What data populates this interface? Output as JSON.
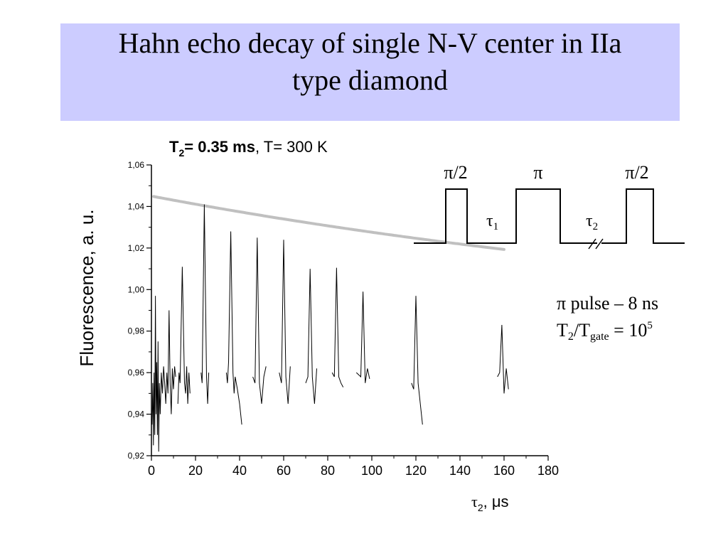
{
  "slide": {
    "title_line1": "Hahn echo decay of single N-V center in IIa",
    "title_line2": "type diamond"
  },
  "annotations": {
    "t2_symbol": "T",
    "t2_sub": "2",
    "t2_value": "= 0.35 ms",
    "temp": ", T= 300 K",
    "pulse_labels": [
      "π/2",
      "π",
      "π/2"
    ],
    "tau1_symbol": "τ",
    "tau1_sub": "1",
    "tau2_symbol": "τ",
    "tau2_sub": "2",
    "pulse_duration": "π pulse – 8 ns",
    "ratio_t": "T",
    "ratio_t_sub": "2",
    "ratio_mid": "/T",
    "ratio_gate_sub": "gate",
    "ratio_eq": " = 10",
    "ratio_exp": "5"
  },
  "chart_data": {
    "type": "line",
    "xlabel_symbol": "τ",
    "xlabel_sub": "2",
    "xlabel_unit": ", μs",
    "ylabel": "Fluorescence, a. u.",
    "xlim": [
      0,
      180
    ],
    "ylim": [
      0.92,
      1.06
    ],
    "xticks": [
      0,
      20,
      40,
      60,
      80,
      100,
      120,
      140,
      160,
      180
    ],
    "xtick_labels": [
      "0",
      "20",
      "40",
      "60",
      "80",
      "100",
      "120",
      "140",
      "160",
      "180"
    ],
    "yticks": [
      0.92,
      0.94,
      0.96,
      0.98,
      1.0,
      1.02,
      1.04,
      1.06
    ],
    "ytick_labels": [
      "0,92",
      "0,94",
      "0,96",
      "0,98",
      "1,00",
      "1,02",
      "1,04",
      "1,06"
    ],
    "colors": {
      "data": "#000000",
      "fit": "#c0c0c0",
      "axis": "#000000"
    },
    "series": [
      {
        "segments": [
          [
            [
              0.3,
              0.935
            ],
            [
              0.6,
              0.955
            ],
            [
              0.9,
              0.925
            ],
            [
              1.2,
              0.96
            ],
            [
              1.5,
              0.93
            ],
            [
              1.8,
              0.997
            ],
            [
              2.1,
              0.94
            ],
            [
              2.4,
              0.965
            ],
            [
              2.7,
              0.93
            ],
            [
              3.0,
              0.975
            ],
            [
              3.3,
              0.922
            ],
            [
              3.6,
              0.955
            ],
            [
              4.0,
              0.94
            ],
            [
              4.5,
              0.96
            ],
            [
              5.0,
              0.95
            ],
            [
              5.5,
              0.963
            ],
            [
              6.0,
              0.955
            ],
            [
              6.5,
              0.945
            ],
            [
              7.0,
              0.96
            ],
            [
              7.5,
              0.95
            ],
            [
              8.0,
              0.99
            ],
            [
              8.5,
              0.955
            ],
            [
              9.0,
              0.94
            ],
            [
              9.5,
              0.962
            ],
            [
              10.0,
              0.952
            ],
            [
              10.5,
              0.963
            ],
            [
              11.0,
              0.958
            ]
          ],
          [
            [
              12.0,
              0.945
            ],
            [
              12.5,
              0.96
            ],
            [
              13.0,
              0.955
            ],
            [
              14.0,
              1.011
            ],
            [
              15.0,
              0.955
            ],
            [
              15.5,
              0.95
            ],
            [
              16.0,
              0.963
            ],
            [
              16.5,
              0.945
            ],
            [
              17.0,
              0.96
            ],
            [
              17.5,
              0.95
            ]
          ],
          [
            [
              22.5,
              0.96
            ],
            [
              23.0,
              0.955
            ],
            [
              24.0,
              1.041
            ],
            [
              25.0,
              0.958
            ],
            [
              25.5,
              0.945
            ],
            [
              26.0,
              0.96
            ]
          ],
          [
            [
              34.0,
              0.96
            ],
            [
              34.5,
              0.955
            ],
            [
              35.0,
              0.965
            ],
            [
              36.0,
              1.028
            ],
            [
              37.0,
              0.96
            ],
            [
              37.5,
              0.95
            ],
            [
              38.0,
              0.958
            ],
            [
              39.0,
              0.952
            ],
            [
              40.0,
              0.945
            ],
            [
              41.0,
              0.935
            ]
          ],
          [
            [
              46.0,
              0.958
            ],
            [
              47.0,
              0.955
            ],
            [
              48.0,
              1.025
            ],
            [
              49.0,
              0.955
            ],
            [
              50.0,
              0.945
            ],
            [
              51.0,
              0.958
            ],
            [
              52.0,
              0.963
            ]
          ],
          [
            [
              58.0,
              0.96
            ],
            [
              59.0,
              0.955
            ],
            [
              60.0,
              1.024
            ],
            [
              61.0,
              0.958
            ],
            [
              62.0,
              0.945
            ],
            [
              63.0,
              0.963
            ]
          ],
          [
            [
              70.0,
              0.955
            ],
            [
              71.0,
              0.958
            ],
            [
              72.0,
              1.01
            ],
            [
              73.0,
              0.958
            ],
            [
              74.0,
              0.945
            ],
            [
              75.0,
              0.962
            ]
          ],
          [
            [
              82.0,
              0.96
            ],
            [
              83.0,
              0.958
            ],
            [
              84.0,
              1.0105
            ],
            [
              85.0,
              0.958
            ],
            [
              86.0,
              0.955
            ],
            [
              87.0,
              0.953
            ]
          ],
          [
            [
              93.0,
              0.96
            ],
            [
              95.0,
              0.958
            ],
            [
              96.0,
              0.999
            ],
            [
              97.0,
              0.955
            ],
            [
              98.0,
              0.962
            ],
            [
              99.0,
              0.957
            ]
          ],
          [
            [
              118.0,
              0.955
            ],
            [
              119.0,
              0.952
            ],
            [
              120.0,
              0.997
            ],
            [
              121.0,
              0.955
            ],
            [
              122.0,
              0.945
            ],
            [
              123.0,
              0.935
            ]
          ],
          [
            [
              157.0,
              0.958
            ],
            [
              158.0,
              0.96
            ],
            [
              159.0,
              0.983
            ],
            [
              160.0,
              0.95
            ],
            [
              161.0,
              0.962
            ],
            [
              162.0,
              0.952
            ]
          ]
        ]
      },
      {
        "fit": true,
        "A": 0.07,
        "T2_us": 350,
        "offset": 0.975,
        "x_range": [
          1,
          160
        ]
      }
    ]
  }
}
